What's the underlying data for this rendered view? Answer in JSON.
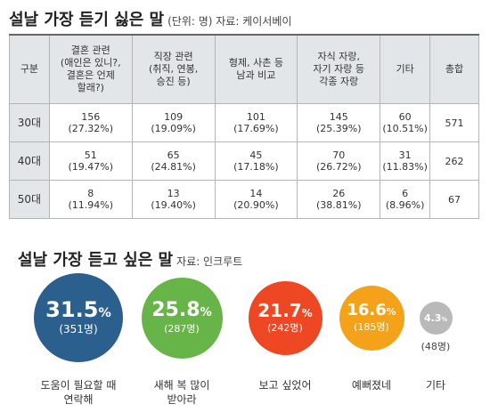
{
  "title1": "설날 가장 듣기 싫은 말",
  "title1_unit": "(단위: 명) 자료: 케이서베이",
  "title2": "설날 가장 듣고 싶은 말",
  "title2_source": "자료: 인크루트",
  "chart_data": [
    {
      "type": "table",
      "title": "설날 가장 듣기 싫은 말",
      "columns": [
        "구분",
        "결혼 관련\n(애인은 있니?,\n결혼은 언제\n할래?)",
        "직장 관련\n(취직, 연봉,\n승진 등)",
        "형제, 사촌 등\n남과 비교",
        "자식 자랑,\n자기 자랑 등\n각종 자랑",
        "기타",
        "총합"
      ],
      "rows": [
        {
          "label": "30대",
          "cells": [
            {
              "count": "156",
              "pct": "(27.32%)"
            },
            {
              "count": "109",
              "pct": "(19.09%)"
            },
            {
              "count": "101",
              "pct": "(17.69%)"
            },
            {
              "count": "145",
              "pct": "(25.39%)"
            },
            {
              "count": "60",
              "pct": "(10.51%)"
            }
          ],
          "total": "571"
        },
        {
          "label": "40대",
          "cells": [
            {
              "count": "51",
              "pct": "(19.47%)"
            },
            {
              "count": "65",
              "pct": "(24.81%)"
            },
            {
              "count": "45",
              "pct": "(17.18%)"
            },
            {
              "count": "70",
              "pct": "(26.72%)"
            },
            {
              "count": "31",
              "pct": "(11.83%)"
            }
          ],
          "total": "262"
        },
        {
          "label": "50대",
          "cells": [
            {
              "count": "8",
              "pct": "(11.94%)"
            },
            {
              "count": "13",
              "pct": "(19.40%)"
            },
            {
              "count": "14",
              "pct": "(20.90%)"
            },
            {
              "count": "26",
              "pct": "(38.81%)"
            },
            {
              "count": "6",
              "pct": "(8.96%)"
            }
          ],
          "total": "67"
        }
      ]
    },
    {
      "type": "bubble",
      "title": "설날 가장 듣고 싶은 말",
      "items": [
        {
          "value": 31.5,
          "pct": "31.5",
          "count": "(351명)",
          "label": "도움이 필요할 때\n연락해",
          "color": "#2b5f8e"
        },
        {
          "value": 25.8,
          "pct": "25.8",
          "count": "(287명)",
          "label": "새해 복 많이\n받아라",
          "color": "#67b548"
        },
        {
          "value": 21.7,
          "pct": "21.7",
          "count": "(242명)",
          "label": "보고 싶었어",
          "color": "#ee4723"
        },
        {
          "value": 16.6,
          "pct": "16.6",
          "count": "(185명)",
          "label": "예뻐졌네",
          "color": "#f5a21b"
        },
        {
          "value": 4.3,
          "pct": "4.3",
          "count": "(48명)",
          "label": "기타",
          "color": "#b9b9b9"
        }
      ],
      "percent_symbol": "%"
    }
  ]
}
